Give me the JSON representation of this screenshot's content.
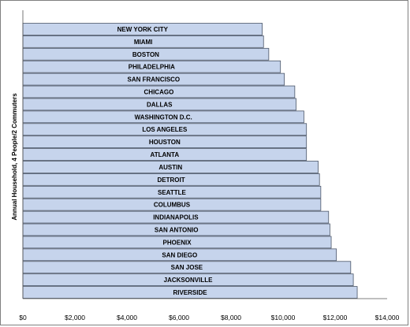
{
  "chart_data": {
    "type": "bar",
    "orientation": "horizontal",
    "title": "",
    "xlabel": "",
    "ylabel": "Annual Household, 4 People/2 Commuters",
    "xlim": [
      0,
      14000
    ],
    "xticks": [
      "$0",
      "$2,000",
      "$4,000",
      "$6,000",
      "$8,000",
      "$10,000",
      "$12,000",
      "$14,000"
    ],
    "xtick_values": [
      0,
      2000,
      4000,
      6000,
      8000,
      10000,
      12000,
      14000
    ],
    "grid": false,
    "legend": "none",
    "bar_color": "#c6d4ec",
    "categories": [
      "NEW YORK CITY",
      "MIAMI",
      "BOSTON",
      "PHILADELPHIA",
      "SAN FRANCISCO",
      "CHICAGO",
      "DALLAS",
      "WASHINGTON D.C.",
      "LOS ANGELES",
      "HOUSTON",
      "ATLANTA",
      "AUSTIN",
      "DETROIT",
      "SEATTLE",
      "COLUMBUS",
      "INDIANAPOLIS",
      "SAN ANTONIO",
      "PHOENIX",
      "SAN DIEGO",
      "SAN JOSE",
      "JACKSONVILLE",
      "RIVERSIDE"
    ],
    "values": [
      9200,
      9250,
      9450,
      9900,
      10050,
      10450,
      10500,
      10800,
      10900,
      10900,
      10900,
      11350,
      11400,
      11450,
      11450,
      11750,
      11800,
      11850,
      12050,
      12600,
      12700,
      12850
    ]
  }
}
